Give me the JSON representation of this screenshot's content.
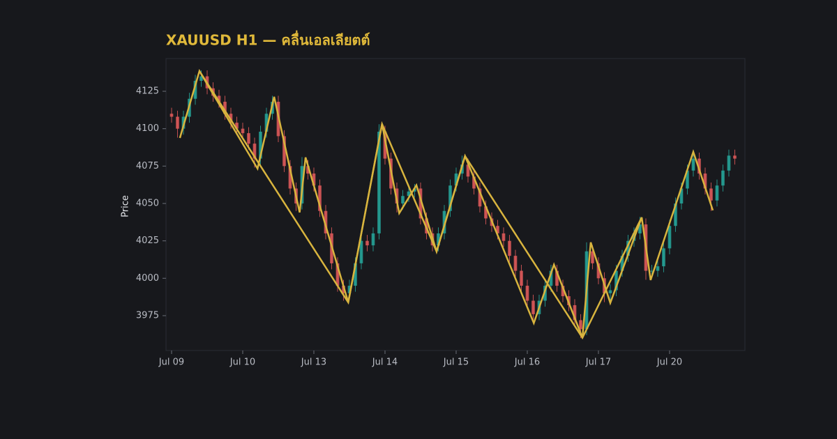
{
  "chart_data": {
    "type": "candlestick",
    "title": "XAUUSD H1 — คลื่นเอลเลียตต์",
    "ylabel": "Price",
    "up_color": "#26a69a",
    "down_color": "#e05a5a",
    "grid": false,
    "xlim": [
      -0.94,
      96.71
    ],
    "ylim": [
      3951.7,
      4146.9
    ],
    "yticks": [
      3975,
      4000,
      4025,
      4050,
      4075,
      4100,
      4125
    ],
    "xticks": [
      {
        "value": 0,
        "label": "Jul 09"
      },
      {
        "value": 12,
        "label": "Jul 10"
      },
      {
        "value": 24,
        "label": "Jul 13"
      },
      {
        "value": 36,
        "label": "Jul 14"
      },
      {
        "value": 48,
        "label": "Jul 15"
      },
      {
        "value": 60,
        "label": "Jul 16"
      },
      {
        "value": 72,
        "label": "Jul 17"
      },
      {
        "value": 84,
        "label": "Jul 20"
      }
    ],
    "x": [
      0,
      1,
      2,
      3,
      4,
      5,
      6,
      7,
      8,
      9,
      10,
      11,
      12,
      13,
      14,
      15,
      16,
      17,
      18,
      19,
      20,
      21,
      22,
      23,
      24,
      25,
      26,
      27,
      28,
      29,
      30,
      31,
      32,
      33,
      34,
      35,
      36,
      37,
      38,
      39,
      40,
      41,
      42,
      43,
      44,
      45,
      46,
      47,
      48,
      49,
      50,
      51,
      52,
      53,
      54,
      55,
      56,
      57,
      58,
      59,
      60,
      61,
      62,
      63,
      64,
      65,
      66,
      67,
      68,
      69,
      70,
      71,
      72,
      73,
      74,
      75,
      76,
      77,
      78,
      79,
      80,
      81,
      82,
      83,
      84,
      85,
      86,
      87,
      88,
      89,
      90,
      91,
      92,
      93,
      94,
      95
    ],
    "open": [
      4110,
      4108,
      4100,
      4108,
      4120,
      4132,
      4135,
      4127,
      4122,
      4118,
      4110,
      4104,
      4100,
      4097,
      4090,
      4080,
      4098,
      4110,
      4118,
      4095,
      4075,
      4060,
      4050,
      4075,
      4070,
      4062,
      4045,
      4030,
      4010,
      3995,
      3990,
      3995,
      4010,
      4025,
      4022,
      4030,
      4098,
      4080,
      4060,
      4050,
      4055,
      4058,
      4060,
      4040,
      4030,
      4022,
      4030,
      4045,
      4062,
      4070,
      4076,
      4068,
      4060,
      4048,
      4040,
      4035,
      4030,
      4025,
      4015,
      4005,
      3995,
      3985,
      3976,
      3985,
      3995,
      4005,
      3995,
      3988,
      3982,
      3972,
      3966,
      4018,
      4010,
      4000,
      3990,
      3992,
      4005,
      4015,
      4025,
      4030,
      4036,
      4005,
      4005,
      4008,
      4020,
      4035,
      4050,
      4060,
      4072,
      4080,
      4070,
      4060,
      4052,
      4062,
      4072,
      4082
    ],
    "high": [
      4114,
      4112,
      4112,
      4124,
      4136,
      4139,
      4139,
      4131,
      4126,
      4122,
      4114,
      4108,
      4104,
      4101,
      4094,
      4102,
      4114,
      4122,
      4122,
      4099,
      4079,
      4064,
      4081,
      4079,
      4074,
      4066,
      4049,
      4034,
      4014,
      3999,
      3999,
      4014,
      4029,
      4029,
      4034,
      4103,
      4102,
      4084,
      4064,
      4059,
      4062,
      4063,
      4064,
      4044,
      4034,
      4034,
      4049,
      4066,
      4074,
      4082,
      4080,
      4072,
      4064,
      4052,
      4044,
      4039,
      4034,
      4029,
      4019,
      4009,
      3999,
      3989,
      3989,
      3999,
      4009,
      4009,
      3999,
      3992,
      3986,
      3976,
      4024,
      4022,
      4014,
      4004,
      3996,
      4009,
      4019,
      4029,
      4034,
      4041,
      4040,
      4009,
      4012,
      4024,
      4039,
      4054,
      4064,
      4076,
      4085,
      4084,
      4074,
      4064,
      4066,
      4076,
      4086,
      4086
    ],
    "low": [
      4104,
      4094,
      4096,
      4104,
      4116,
      4128,
      4123,
      4118,
      4114,
      4106,
      4100,
      4096,
      4093,
      4086,
      4074,
      4076,
      4094,
      4106,
      4091,
      4071,
      4056,
      4045,
      4046,
      4066,
      4058,
      4041,
      4026,
      4006,
      3991,
      3985,
      3986,
      3991,
      4006,
      4018,
      4018,
      4026,
      4076,
      4056,
      4044,
      4046,
      4051,
      4054,
      4036,
      4026,
      4018,
      4018,
      4026,
      4041,
      4058,
      4066,
      4064,
      4056,
      4044,
      4036,
      4031,
      4026,
      4021,
      4011,
      4001,
      3991,
      3981,
      3970,
      3972,
      3981,
      3991,
      3991,
      3984,
      3978,
      3968,
      3960,
      3962,
      4006,
      3996,
      3984,
      3984,
      3988,
      4001,
      4011,
      4021,
      4026,
      3999,
      4001,
      4001,
      4004,
      4016,
      4031,
      4046,
      4056,
      4068,
      4066,
      4056,
      4045,
      4048,
      4058,
      4068,
      4076
    ],
    "close": [
      4108,
      4100,
      4108,
      4120,
      4132,
      4135,
      4127,
      4122,
      4118,
      4110,
      4104,
      4100,
      4097,
      4090,
      4080,
      4098,
      4110,
      4118,
      4095,
      4075,
      4060,
      4050,
      4075,
      4070,
      4062,
      4045,
      4030,
      4010,
      3995,
      3990,
      3995,
      4010,
      4025,
      4022,
      4030,
      4098,
      4080,
      4060,
      4050,
      4055,
      4058,
      4060,
      4040,
      4030,
      4022,
      4030,
      4045,
      4062,
      4070,
      4076,
      4068,
      4060,
      4048,
      4040,
      4035,
      4030,
      4025,
      4015,
      4005,
      3995,
      3985,
      3976,
      3985,
      3995,
      4005,
      3995,
      3988,
      3982,
      3972,
      3966,
      4018,
      4010,
      4000,
      3990,
      3992,
      4005,
      4015,
      4025,
      4030,
      4036,
      4005,
      4005,
      4008,
      4020,
      4035,
      4050,
      4060,
      4072,
      4080,
      4070,
      4060,
      4052,
      4062,
      4072,
      4082,
      4080
    ],
    "overlays": [
      {
        "color": "#d8b43e",
        "x": [
          1.4,
          4.7,
          14.5,
          17.3,
          21.6,
          22.6,
          29.8,
          35.5,
          38.4,
          41.3,
          44.7,
          49.5,
          61.1,
          64.5,
          69.3,
          70.7,
          74.0,
          79.3,
          80.8,
          88.0,
          91.3
        ],
        "y": [
          4093.8,
          4138.5,
          4073.3,
          4121.3,
          4044.0,
          4080.8,
          3983.9,
          4103.1,
          4043.5,
          4062.2,
          4017.9,
          4081.7,
          3970.0,
          4009.1,
          3960.2,
          4024.0,
          3983.5,
          4040.7,
          3998.8,
          4084.5,
          4045.4
        ]
      },
      {
        "color": "#d8b43e",
        "x": [
          4.7,
          29.8,
          35.5,
          44.7,
          49.5,
          69.3,
          79.3
        ],
        "y": [
          4138.5,
          3983.9,
          4103.1,
          4017.9,
          4081.7,
          3960.2,
          4040.7
        ]
      }
    ]
  }
}
